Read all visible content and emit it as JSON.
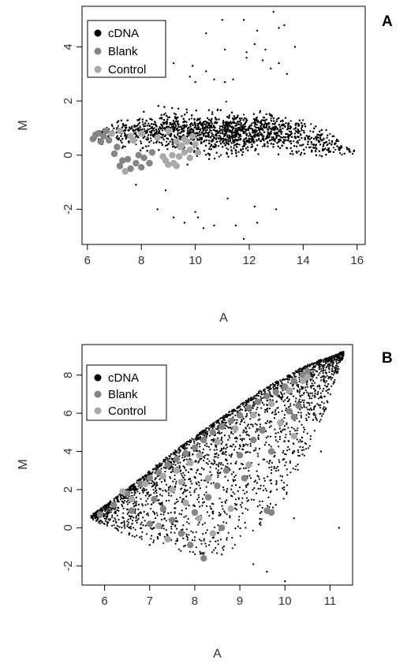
{
  "chart_data": [
    {
      "type": "scatter",
      "panel_label": "A",
      "title": "",
      "xlabel": "A",
      "ylabel": "M",
      "xlim": [
        5.8,
        16.3
      ],
      "ylim": [
        -3.3,
        5.5
      ],
      "xticks": [
        6,
        8,
        10,
        12,
        14,
        16
      ],
      "yticks": [
        -2,
        0,
        2,
        4
      ],
      "grid": false,
      "legend_position": "top-left",
      "series": [
        {
          "name": "cDNA",
          "color": "#000000",
          "marker": "dot",
          "cloud": {
            "spine": [
              [
                6.2,
                0.7
              ],
              [
                7.0,
                0.85
              ],
              [
                8.0,
                0.9
              ],
              [
                9.0,
                0.9
              ],
              [
                10.0,
                0.85
              ],
              [
                11.0,
                0.85
              ],
              [
                12.0,
                0.9
              ],
              [
                13.0,
                0.9
              ],
              [
                14.0,
                0.7
              ],
              [
                15.0,
                0.45
              ],
              [
                15.9,
                0.15
              ]
            ],
            "upper_spread": [
              0.3,
              0.6,
              0.8,
              0.9,
              0.9,
              0.9,
              0.9,
              0.85,
              0.8,
              0.55,
              0.15
            ],
            "lower_spread": [
              0.3,
              0.7,
              0.9,
              1.0,
              1.1,
              1.1,
              1.0,
              0.95,
              0.9,
              0.6,
              0.15
            ]
          },
          "outliers": [
            [
              10.7,
              2.8
            ],
            [
              11.1,
              2.7
            ],
            [
              11.4,
              2.8
            ],
            [
              10.0,
              2.7
            ],
            [
              9.8,
              2.9
            ],
            [
              11.9,
              3.8
            ],
            [
              11.9,
              3.6
            ],
            [
              12.5,
              3.5
            ],
            [
              12.8,
              3.2
            ],
            [
              13.1,
              3.4
            ],
            [
              13.4,
              3.0
            ],
            [
              11.1,
              3.9
            ],
            [
              10.4,
              4.5
            ],
            [
              12.3,
              4.6
            ],
            [
              12.2,
              4.1
            ],
            [
              13.1,
              4.7
            ],
            [
              11.0,
              5.0
            ],
            [
              11.8,
              5.0
            ],
            [
              12.9,
              5.3
            ],
            [
              13.7,
              4.0
            ],
            [
              13.3,
              4.8
            ],
            [
              9.2,
              3.4
            ],
            [
              9.9,
              3.3
            ],
            [
              10.4,
              3.1
            ],
            [
              12.6,
              3.9
            ],
            [
              10.7,
              -2.6
            ],
            [
              11.5,
              -2.6
            ],
            [
              11.8,
              -3.1
            ],
            [
              9.6,
              -2.5
            ],
            [
              10.1,
              -2.3
            ],
            [
              12.3,
              -2.5
            ],
            [
              11.2,
              -1.6
            ],
            [
              10.3,
              -2.7
            ],
            [
              8.6,
              -2.0
            ],
            [
              13.0,
              -2.0
            ],
            [
              10.0,
              -2.1
            ],
            [
              8.9,
              -1.3
            ],
            [
              12.2,
              -1.9
            ],
            [
              7.8,
              -1.1
            ],
            [
              9.2,
              -2.3
            ]
          ]
        },
        {
          "name": "Blank",
          "color": "#858585",
          "marker": "filled-circle",
          "points": [
            [
              6.2,
              0.6
            ],
            [
              6.4,
              0.8
            ],
            [
              6.6,
              0.7
            ],
            [
              6.8,
              0.55
            ],
            [
              6.5,
              0.5
            ],
            [
              6.3,
              0.75
            ],
            [
              6.7,
              0.9
            ],
            [
              7.1,
              0.3
            ],
            [
              7.0,
              0.05
            ],
            [
              7.2,
              -0.4
            ],
            [
              7.4,
              -0.6
            ],
            [
              7.6,
              -0.5
            ],
            [
              7.3,
              -0.2
            ],
            [
              7.8,
              -0.3
            ],
            [
              8.1,
              -0.1
            ],
            [
              8.4,
              0.1
            ],
            [
              7.9,
              0.0
            ],
            [
              8.3,
              -0.3
            ],
            [
              8.0,
              -0.45
            ],
            [
              7.5,
              -0.15
            ]
          ]
        },
        {
          "name": "Control",
          "color": "#a9a9a9",
          "marker": "filled-circle",
          "points": [
            [
              6.9,
              0.8
            ],
            [
              7.2,
              0.9
            ],
            [
              7.6,
              0.7
            ],
            [
              8.0,
              0.8
            ],
            [
              8.6,
              0.65
            ],
            [
              9.0,
              0.9
            ],
            [
              9.3,
              0.5
            ],
            [
              9.5,
              0.35
            ],
            [
              9.6,
              0.1
            ],
            [
              9.8,
              0.2
            ],
            [
              9.4,
              -0.05
            ],
            [
              9.2,
              -0.3
            ],
            [
              9.0,
              -0.35
            ],
            [
              9.7,
              0.5
            ],
            [
              10.0,
              0.4
            ],
            [
              9.9,
              0.7
            ],
            [
              9.6,
              0.6
            ],
            [
              9.8,
              -0.1
            ],
            [
              9.45,
              0.3
            ],
            [
              9.15,
              0.0
            ],
            [
              8.9,
              -0.2
            ],
            [
              10.1,
              0.1
            ],
            [
              9.3,
              -0.4
            ],
            [
              8.8,
              -0.05
            ],
            [
              7.4,
              -0.6
            ],
            [
              7.7,
              0.55
            ]
          ]
        }
      ]
    },
    {
      "type": "scatter",
      "panel_label": "B",
      "title": "",
      "xlabel": "A",
      "ylabel": "M",
      "xlim": [
        5.5,
        11.5
      ],
      "ylim": [
        -3.0,
        9.6
      ],
      "xticks": [
        6,
        7,
        8,
        9,
        10,
        11
      ],
      "yticks": [
        -2,
        0,
        2,
        4,
        6,
        8
      ],
      "grid": false,
      "legend_position": "top-left",
      "series": [
        {
          "name": "cDNA",
          "color": "#000000",
          "marker": "dot",
          "wedge": {
            "upper_edge": [
              [
                5.7,
                0.6
              ],
              [
                6.5,
                2.0
              ],
              [
                7.5,
                3.9
              ],
              [
                8.5,
                5.6
              ],
              [
                9.5,
                7.2
              ],
              [
                10.5,
                8.5
              ],
              [
                11.3,
                9.2
              ]
            ],
            "lower_edge": [
              [
                5.7,
                0.5
              ],
              [
                6.5,
                -0.4
              ],
              [
                7.5,
                -1.0
              ],
              [
                8.2,
                -1.6
              ],
              [
                9.0,
                -1.0
              ],
              [
                10.0,
                1.5
              ],
              [
                10.8,
                5.5
              ],
              [
                11.3,
                9.0
              ]
            ]
          },
          "outliers": [
            [
              9.3,
              -1.9
            ],
            [
              9.6,
              -2.3
            ],
            [
              10.0,
              -2.8
            ],
            [
              11.2,
              0.0
            ],
            [
              10.9,
              6.2
            ],
            [
              10.8,
              4.0
            ],
            [
              11.1,
              8.8
            ],
            [
              9.8,
              1.2
            ],
            [
              10.2,
              0.5
            ],
            [
              7.0,
              -0.9
            ],
            [
              8.6,
              -1.4
            ]
          ]
        },
        {
          "name": "Blank",
          "color": "#858585",
          "marker": "filled-circle",
          "points": [
            [
              5.9,
              0.7
            ],
            [
              6.2,
              1.2
            ],
            [
              6.5,
              1.8
            ],
            [
              6.8,
              2.3
            ],
            [
              7.0,
              2.6
            ],
            [
              7.2,
              2.9
            ],
            [
              7.4,
              3.3
            ],
            [
              7.6,
              3.6
            ],
            [
              7.8,
              3.9
            ],
            [
              8.0,
              4.2
            ],
            [
              8.2,
              4.6
            ],
            [
              8.4,
              5.0
            ],
            [
              8.6,
              5.3
            ],
            [
              8.8,
              5.6
            ],
            [
              9.0,
              5.9
            ],
            [
              9.2,
              6.3
            ],
            [
              9.4,
              6.6
            ],
            [
              9.6,
              6.9
            ],
            [
              9.8,
              7.1
            ],
            [
              10.0,
              7.4
            ],
            [
              10.2,
              7.7
            ],
            [
              10.4,
              8.0
            ],
            [
              10.5,
              8.2
            ],
            [
              7.1,
              1.5
            ],
            [
              7.3,
              1.0
            ],
            [
              7.5,
              0.4
            ],
            [
              7.7,
              -0.3
            ],
            [
              7.9,
              -0.9
            ],
            [
              8.2,
              -1.6
            ],
            [
              8.0,
              0.8
            ],
            [
              8.3,
              1.6
            ],
            [
              8.5,
              2.2
            ],
            [
              8.7,
              3.0
            ],
            [
              9.0,
              3.8
            ],
            [
              9.3,
              4.6
            ],
            [
              9.5,
              5.1
            ],
            [
              9.7,
              4.0
            ],
            [
              9.6,
              0.9
            ],
            [
              9.7,
              0.8
            ],
            [
              10.1,
              6.1
            ],
            [
              10.2,
              5.8
            ],
            [
              10.3,
              6.4
            ],
            [
              7.0,
              0.2
            ],
            [
              6.6,
              0.9
            ],
            [
              8.6,
              0.0
            ],
            [
              9.1,
              2.6
            ]
          ]
        },
        {
          "name": "Control",
          "color": "#a9a9a9",
          "marker": "filled-circle",
          "points": [
            [
              6.9,
              2.3
            ],
            [
              7.3,
              2.7
            ],
            [
              7.6,
              3.0
            ],
            [
              7.9,
              3.4
            ],
            [
              8.1,
              3.8
            ],
            [
              8.5,
              4.5
            ],
            [
              8.9,
              5.2
            ],
            [
              9.3,
              5.9
            ],
            [
              9.7,
              6.5
            ],
            [
              10.1,
              7.2
            ],
            [
              10.4,
              7.7
            ],
            [
              10.5,
              7.9
            ],
            [
              7.5,
              2.0
            ],
            [
              7.8,
              1.3
            ],
            [
              8.1,
              0.5
            ],
            [
              8.4,
              -0.3
            ],
            [
              7.4,
              -0.6
            ],
            [
              7.2,
              0.1
            ],
            [
              8.8,
              1.0
            ],
            [
              9.2,
              3.3
            ],
            [
              8.3,
              2.6
            ],
            [
              7.7,
              2.4
            ],
            [
              9.9,
              5.5
            ],
            [
              10.2,
              4.8
            ],
            [
              6.6,
              1.5
            ],
            [
              6.4,
              1.9
            ]
          ]
        }
      ]
    }
  ]
}
